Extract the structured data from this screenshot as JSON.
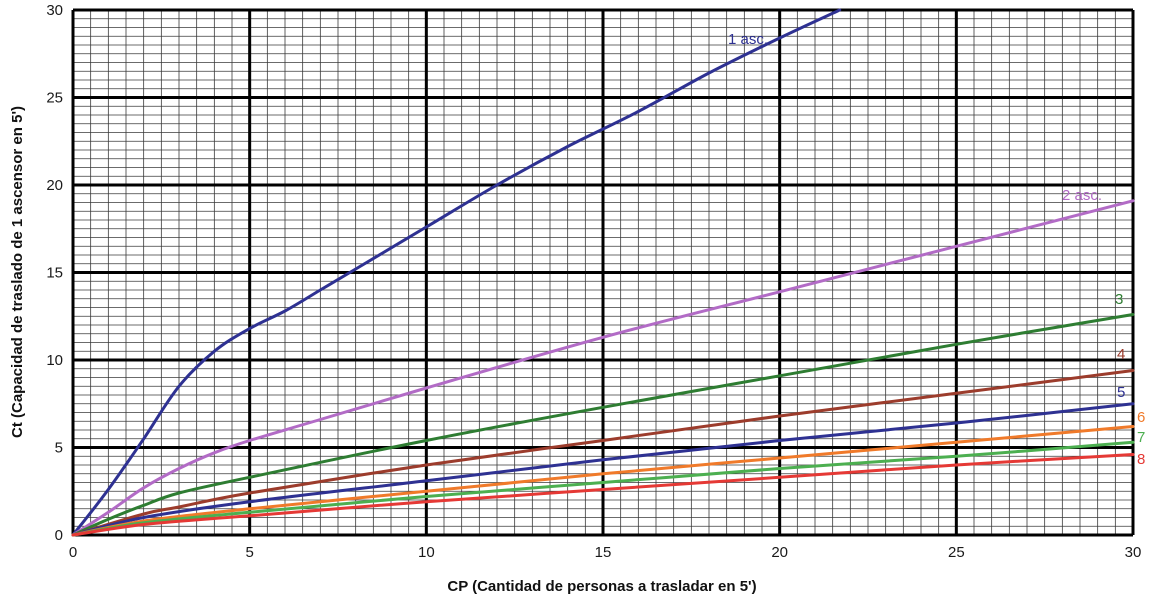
{
  "chart_data": {
    "type": "line",
    "title": "",
    "xlabel": "CP (Cantidad de personas a trasladar en 5')",
    "ylabel": "Ct (Capacidad de traslado de 1 ascensor en 5')",
    "xlim": [
      0,
      30
    ],
    "ylim": [
      0,
      30
    ],
    "x_ticks": [
      0,
      5,
      10,
      15,
      20,
      25,
      30
    ],
    "y_ticks": [
      0,
      5,
      10,
      15,
      20,
      25,
      30
    ],
    "grid": true,
    "minor_grid_x": 0.5,
    "minor_grid_y": 0.5,
    "legend": "inline labels at right end of each curve",
    "series": [
      {
        "name": "1 asc.",
        "color": "#2e3192",
        "points": [
          [
            0,
            0
          ],
          [
            1,
            2.6
          ],
          [
            2,
            5.5
          ],
          [
            3,
            8.5
          ],
          [
            4,
            10.5
          ],
          [
            5,
            11.8
          ],
          [
            6,
            12.8
          ],
          [
            7,
            14.0
          ],
          [
            8,
            15.2
          ],
          [
            10,
            17.6
          ],
          [
            12,
            20.0
          ],
          [
            14,
            22.2
          ],
          [
            16,
            24.2
          ],
          [
            18,
            26.4
          ],
          [
            20,
            28.4
          ],
          [
            21.7,
            30
          ]
        ]
      },
      {
        "name": "2 asc.",
        "color": "#b26bc6",
        "points": [
          [
            0,
            0
          ],
          [
            1,
            1.3
          ],
          [
            2,
            2.7
          ],
          [
            3,
            3.8
          ],
          [
            4,
            4.7
          ],
          [
            5,
            5.4
          ],
          [
            7,
            6.6
          ],
          [
            10,
            8.4
          ],
          [
            15,
            11.3
          ],
          [
            20,
            13.9
          ],
          [
            25,
            16.5
          ],
          [
            30,
            19.1
          ]
        ]
      },
      {
        "name": "3",
        "color": "#2e7d32",
        "points": [
          [
            0,
            0
          ],
          [
            1,
            0.9
          ],
          [
            2,
            1.7
          ],
          [
            3,
            2.4
          ],
          [
            5,
            3.3
          ],
          [
            10,
            5.4
          ],
          [
            15,
            7.3
          ],
          [
            20,
            9.1
          ],
          [
            25,
            10.9
          ],
          [
            30,
            12.6
          ]
        ]
      },
      {
        "name": "4",
        "color": "#9c3c2c",
        "points": [
          [
            0,
            0
          ],
          [
            2,
            1.2
          ],
          [
            3,
            1.6
          ],
          [
            5,
            2.4
          ],
          [
            10,
            4.0
          ],
          [
            15,
            5.4
          ],
          [
            20,
            6.8
          ],
          [
            25,
            8.1
          ],
          [
            30,
            9.4
          ]
        ]
      },
      {
        "name": "5",
        "color": "#2e3192",
        "points": [
          [
            0,
            0
          ],
          [
            2,
            1.0
          ],
          [
            5,
            1.9
          ],
          [
            10,
            3.1
          ],
          [
            15,
            4.3
          ],
          [
            20,
            5.4
          ],
          [
            25,
            6.4
          ],
          [
            30,
            7.5
          ]
        ]
      },
      {
        "name": "6",
        "color": "#f07a2a",
        "points": [
          [
            0,
            0
          ],
          [
            2,
            0.8
          ],
          [
            5,
            1.5
          ],
          [
            10,
            2.5
          ],
          [
            15,
            3.5
          ],
          [
            20,
            4.4
          ],
          [
            25,
            5.3
          ],
          [
            30,
            6.2
          ]
        ]
      },
      {
        "name": "7",
        "color": "#4caf50",
        "points": [
          [
            0,
            0
          ],
          [
            2,
            0.7
          ],
          [
            5,
            1.3
          ],
          [
            10,
            2.2
          ],
          [
            15,
            3.0
          ],
          [
            20,
            3.8
          ],
          [
            25,
            4.5
          ],
          [
            30,
            5.3
          ]
        ]
      },
      {
        "name": "8",
        "color": "#e53935",
        "points": [
          [
            0,
            0
          ],
          [
            2,
            0.6
          ],
          [
            5,
            1.1
          ],
          [
            10,
            1.9
          ],
          [
            15,
            2.6
          ],
          [
            20,
            3.3
          ],
          [
            25,
            4.0
          ],
          [
            30,
            4.6
          ]
        ]
      }
    ]
  }
}
